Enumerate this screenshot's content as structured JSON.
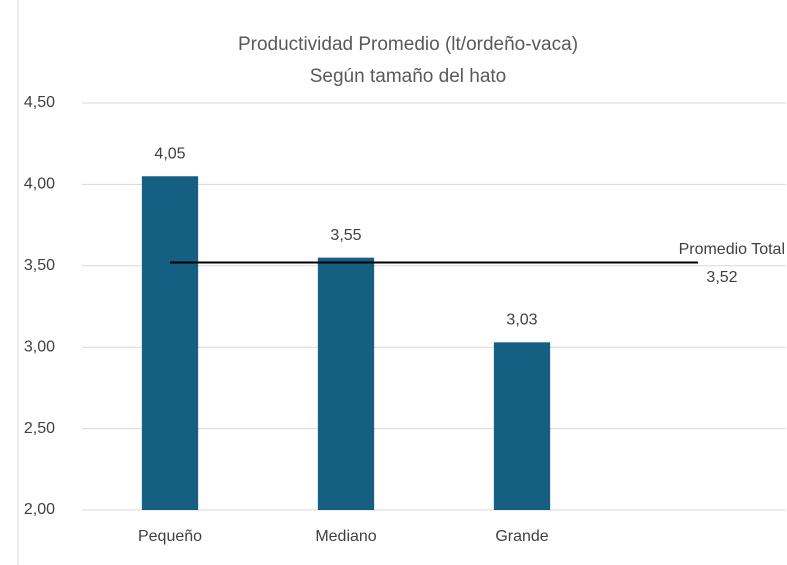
{
  "chart_data": {
    "type": "bar",
    "title": "Productividad Promedio (lt/ordeño-vaca)",
    "subtitle": "Según tamaño del hato",
    "categories": [
      "Pequeño",
      "Mediano",
      "Grande",
      null
    ],
    "values": [
      4.05,
      3.55,
      3.03,
      null
    ],
    "value_labels": [
      "4,05",
      "3,55",
      "3,03",
      null
    ],
    "color": "#156082",
    "ylim": [
      2,
      4.5
    ],
    "yticks": [
      {
        "value": 2,
        "label": "2,00"
      },
      {
        "value": 2.5,
        "label": "2,50"
      },
      {
        "value": 3,
        "label": "3,00"
      },
      {
        "value": 3.5,
        "label": "3,50"
      },
      {
        "value": 4,
        "label": "4,00"
      },
      {
        "value": 4.5,
        "label": "4,50"
      }
    ],
    "grid": true,
    "reference_line": {
      "name": "Promedio Total",
      "value": 3.52,
      "value_label": "3,52",
      "color": "#000000"
    }
  }
}
